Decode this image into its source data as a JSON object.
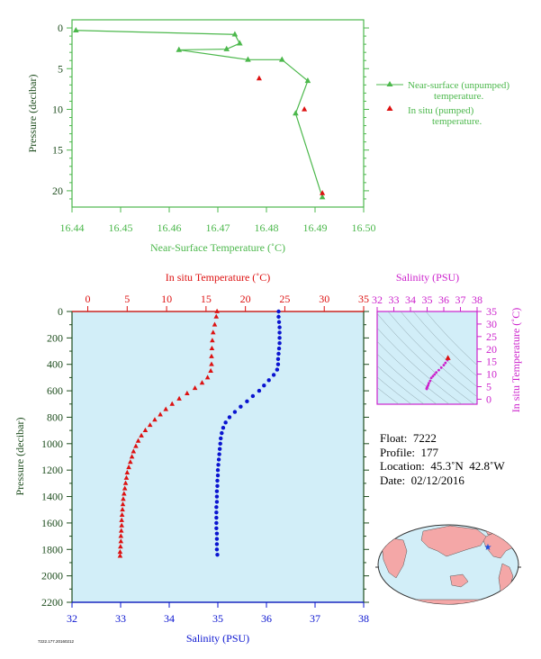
{
  "chart_data": [
    {
      "type": "line",
      "ylabel": "Pressure (decibar)",
      "xlabel": "Near-Surface Temperature (˚C)",
      "xlim": [
        16.44,
        16.5
      ],
      "ylim": [
        22,
        -1
      ],
      "x_ticks": [
        "16.44",
        "16.45",
        "16.46",
        "16.47",
        "16.48",
        "16.49",
        "16.50"
      ],
      "y_ticks": [
        "0",
        "5",
        "10",
        "15",
        "20"
      ],
      "grid": false,
      "legend_position": "right",
      "series": [
        {
          "name": "Near-surface (unpumped) temperature.",
          "color": "#4cb84c",
          "marker": "triangle",
          "points": [
            [
              16.4408,
              0.3
            ],
            [
              16.4735,
              0.8
            ],
            [
              16.4745,
              1.9
            ],
            [
              16.4718,
              2.6
            ],
            [
              16.462,
              2.7
            ],
            [
              16.4762,
              3.9
            ],
            [
              16.4832,
              3.9
            ],
            [
              16.4885,
              6.5
            ],
            [
              16.486,
              10.5
            ],
            [
              16.4915,
              20.8
            ]
          ]
        },
        {
          "name": "In situ (pumped) temperature.",
          "color": "#dd1111",
          "marker": "triangle",
          "points": [
            [
              16.4785,
              6.2
            ],
            [
              16.4878,
              10.0
            ],
            [
              16.4915,
              20.3
            ]
          ]
        }
      ],
      "legend_lines": [
        [
          "Near-surface (unpumped)",
          "temperature."
        ],
        [
          "In situ (pumped)",
          "temperature."
        ]
      ]
    },
    {
      "type": "scatter",
      "ylabel": "Pressure (decibar)",
      "xlabel": "Salinity (PSU)",
      "top_xlabel": "In situ Temperature (˚C)",
      "xlim": [
        32,
        38
      ],
      "top_xlim": [
        -2,
        35
      ],
      "ylim": [
        2200,
        0
      ],
      "x_ticks": [
        "32",
        "33",
        "34",
        "35",
        "36",
        "37",
        "38"
      ],
      "top_x_ticks": [
        "0",
        "5",
        "10",
        "15",
        "20",
        "25",
        "30",
        "35"
      ],
      "y_ticks": [
        "0",
        "200",
        "400",
        "600",
        "800",
        "1000",
        "1200",
        "1400",
        "1600",
        "1800",
        "2000",
        "2200"
      ],
      "background": "#d2eef8",
      "series": [
        {
          "name": "In situ Temperature (˚C)",
          "color": "#dd1111",
          "marker": "triangle",
          "axis": "top",
          "points": [
            [
              16.4,
              0
            ],
            [
              16.3,
              40
            ],
            [
              16.1,
              100
            ],
            [
              15.9,
              160
            ],
            [
              15.8,
              220
            ],
            [
              15.75,
              280
            ],
            [
              15.7,
              340
            ],
            [
              15.7,
              400
            ],
            [
              15.6,
              450
            ],
            [
              15.2,
              500
            ],
            [
              14.5,
              540
            ],
            [
              13.6,
              580
            ],
            [
              12.6,
              620
            ],
            [
              11.6,
              660
            ],
            [
              10.7,
              700
            ],
            [
              9.9,
              740
            ],
            [
              9.2,
              780
            ],
            [
              8.5,
              820
            ],
            [
              7.9,
              860
            ],
            [
              7.3,
              900
            ],
            [
              6.8,
              940
            ],
            [
              6.4,
              980
            ],
            [
              6.1,
              1020
            ],
            [
              5.8,
              1060
            ],
            [
              5.6,
              1100
            ],
            [
              5.4,
              1140
            ],
            [
              5.2,
              1180
            ],
            [
              5.0,
              1220
            ],
            [
              4.9,
              1260
            ],
            [
              4.8,
              1300
            ],
            [
              4.7,
              1340
            ],
            [
              4.6,
              1380
            ],
            [
              4.5,
              1420
            ],
            [
              4.45,
              1460
            ],
            [
              4.4,
              1500
            ],
            [
              4.35,
              1540
            ],
            [
              4.3,
              1580
            ],
            [
              4.3,
              1620
            ],
            [
              4.25,
              1660
            ],
            [
              4.2,
              1700
            ],
            [
              4.2,
              1740
            ],
            [
              4.15,
              1780
            ],
            [
              4.1,
              1820
            ],
            [
              4.1,
              1850
            ]
          ]
        },
        {
          "name": "Salinity (PSU)",
          "color": "#0a14d0",
          "marker": "circle",
          "axis": "bottom",
          "points": [
            [
              36.25,
              0
            ],
            [
              36.25,
              40
            ],
            [
              36.26,
              80
            ],
            [
              36.27,
              120
            ],
            [
              36.27,
              160
            ],
            [
              36.27,
              200
            ],
            [
              36.27,
              240
            ],
            [
              36.26,
              280
            ],
            [
              36.25,
              320
            ],
            [
              36.24,
              360
            ],
            [
              36.24,
              400
            ],
            [
              36.22,
              440
            ],
            [
              36.15,
              480
            ],
            [
              36.05,
              520
            ],
            [
              35.95,
              560
            ],
            [
              35.85,
              600
            ],
            [
              35.72,
              640
            ],
            [
              35.6,
              680
            ],
            [
              35.47,
              720
            ],
            [
              35.35,
              760
            ],
            [
              35.24,
              800
            ],
            [
              35.16,
              840
            ],
            [
              35.11,
              880
            ],
            [
              35.08,
              920
            ],
            [
              35.06,
              960
            ],
            [
              35.05,
              1000
            ],
            [
              35.04,
              1040
            ],
            [
              35.03,
              1080
            ],
            [
              35.02,
              1120
            ],
            [
              35.01,
              1160
            ],
            [
              35.0,
              1200
            ],
            [
              35.0,
              1240
            ],
            [
              34.99,
              1280
            ],
            [
              34.99,
              1320
            ],
            [
              34.98,
              1360
            ],
            [
              34.98,
              1400
            ],
            [
              34.98,
              1440
            ],
            [
              34.97,
              1480
            ],
            [
              34.97,
              1520
            ],
            [
              34.97,
              1560
            ],
            [
              34.97,
              1600
            ],
            [
              34.97,
              1640
            ],
            [
              34.98,
              1680
            ],
            [
              34.98,
              1720
            ],
            [
              34.98,
              1760
            ],
            [
              34.98,
              1800
            ],
            [
              34.99,
              1840
            ]
          ]
        }
      ]
    },
    {
      "type": "scatter",
      "title": "Salinity (PSU)",
      "ylabel": "In situ Temperature (˚C)",
      "xlim": [
        32,
        38
      ],
      "ylim": [
        -2,
        35
      ],
      "x_ticks": [
        "32",
        "33",
        "34",
        "35",
        "36",
        "37",
        "38"
      ],
      "y_ticks": [
        "0",
        "5",
        "10",
        "15",
        "20",
        "25",
        "30",
        "35"
      ],
      "color": "#cc22cc",
      "background": "#d2eef8",
      "points": [
        [
          36.25,
          16.4
        ],
        [
          36.22,
          15.6
        ],
        [
          36.1,
          14.5
        ],
        [
          36.0,
          13.6
        ],
        [
          35.85,
          12.6
        ],
        [
          35.7,
          11.6
        ],
        [
          35.55,
          10.7
        ],
        [
          35.45,
          9.9
        ],
        [
          35.35,
          9.2
        ],
        [
          35.25,
          8.5
        ],
        [
          35.18,
          7.3
        ],
        [
          35.1,
          6.4
        ],
        [
          35.06,
          5.6
        ],
        [
          35.02,
          5.0
        ],
        [
          35.0,
          4.7
        ],
        [
          34.98,
          4.4
        ],
        [
          34.97,
          4.2
        ],
        [
          34.98,
          4.1
        ]
      ],
      "highlight": [
        36.25,
        16.4
      ]
    }
  ],
  "float_info": {
    "float": "Float:  7222",
    "profile": "Profile:  177",
    "location": "Location:  45.3˚N  42.8˚W",
    "date": "Date:  02/12/2016"
  },
  "map": {
    "marker": [
      -42.8,
      45.3
    ],
    "marker_color": "#1a4fe0",
    "land_color": "#f4a7a7",
    "ocean_color": "#d2eef8"
  },
  "footer_text": "7222.177.20160212",
  "colors": {
    "top_axis": "#4cb84c",
    "temperature": "#dd1111",
    "salinity": "#0a14d0",
    "ts": "#cc22cc",
    "pressure_axis": "#1e4d1e"
  }
}
